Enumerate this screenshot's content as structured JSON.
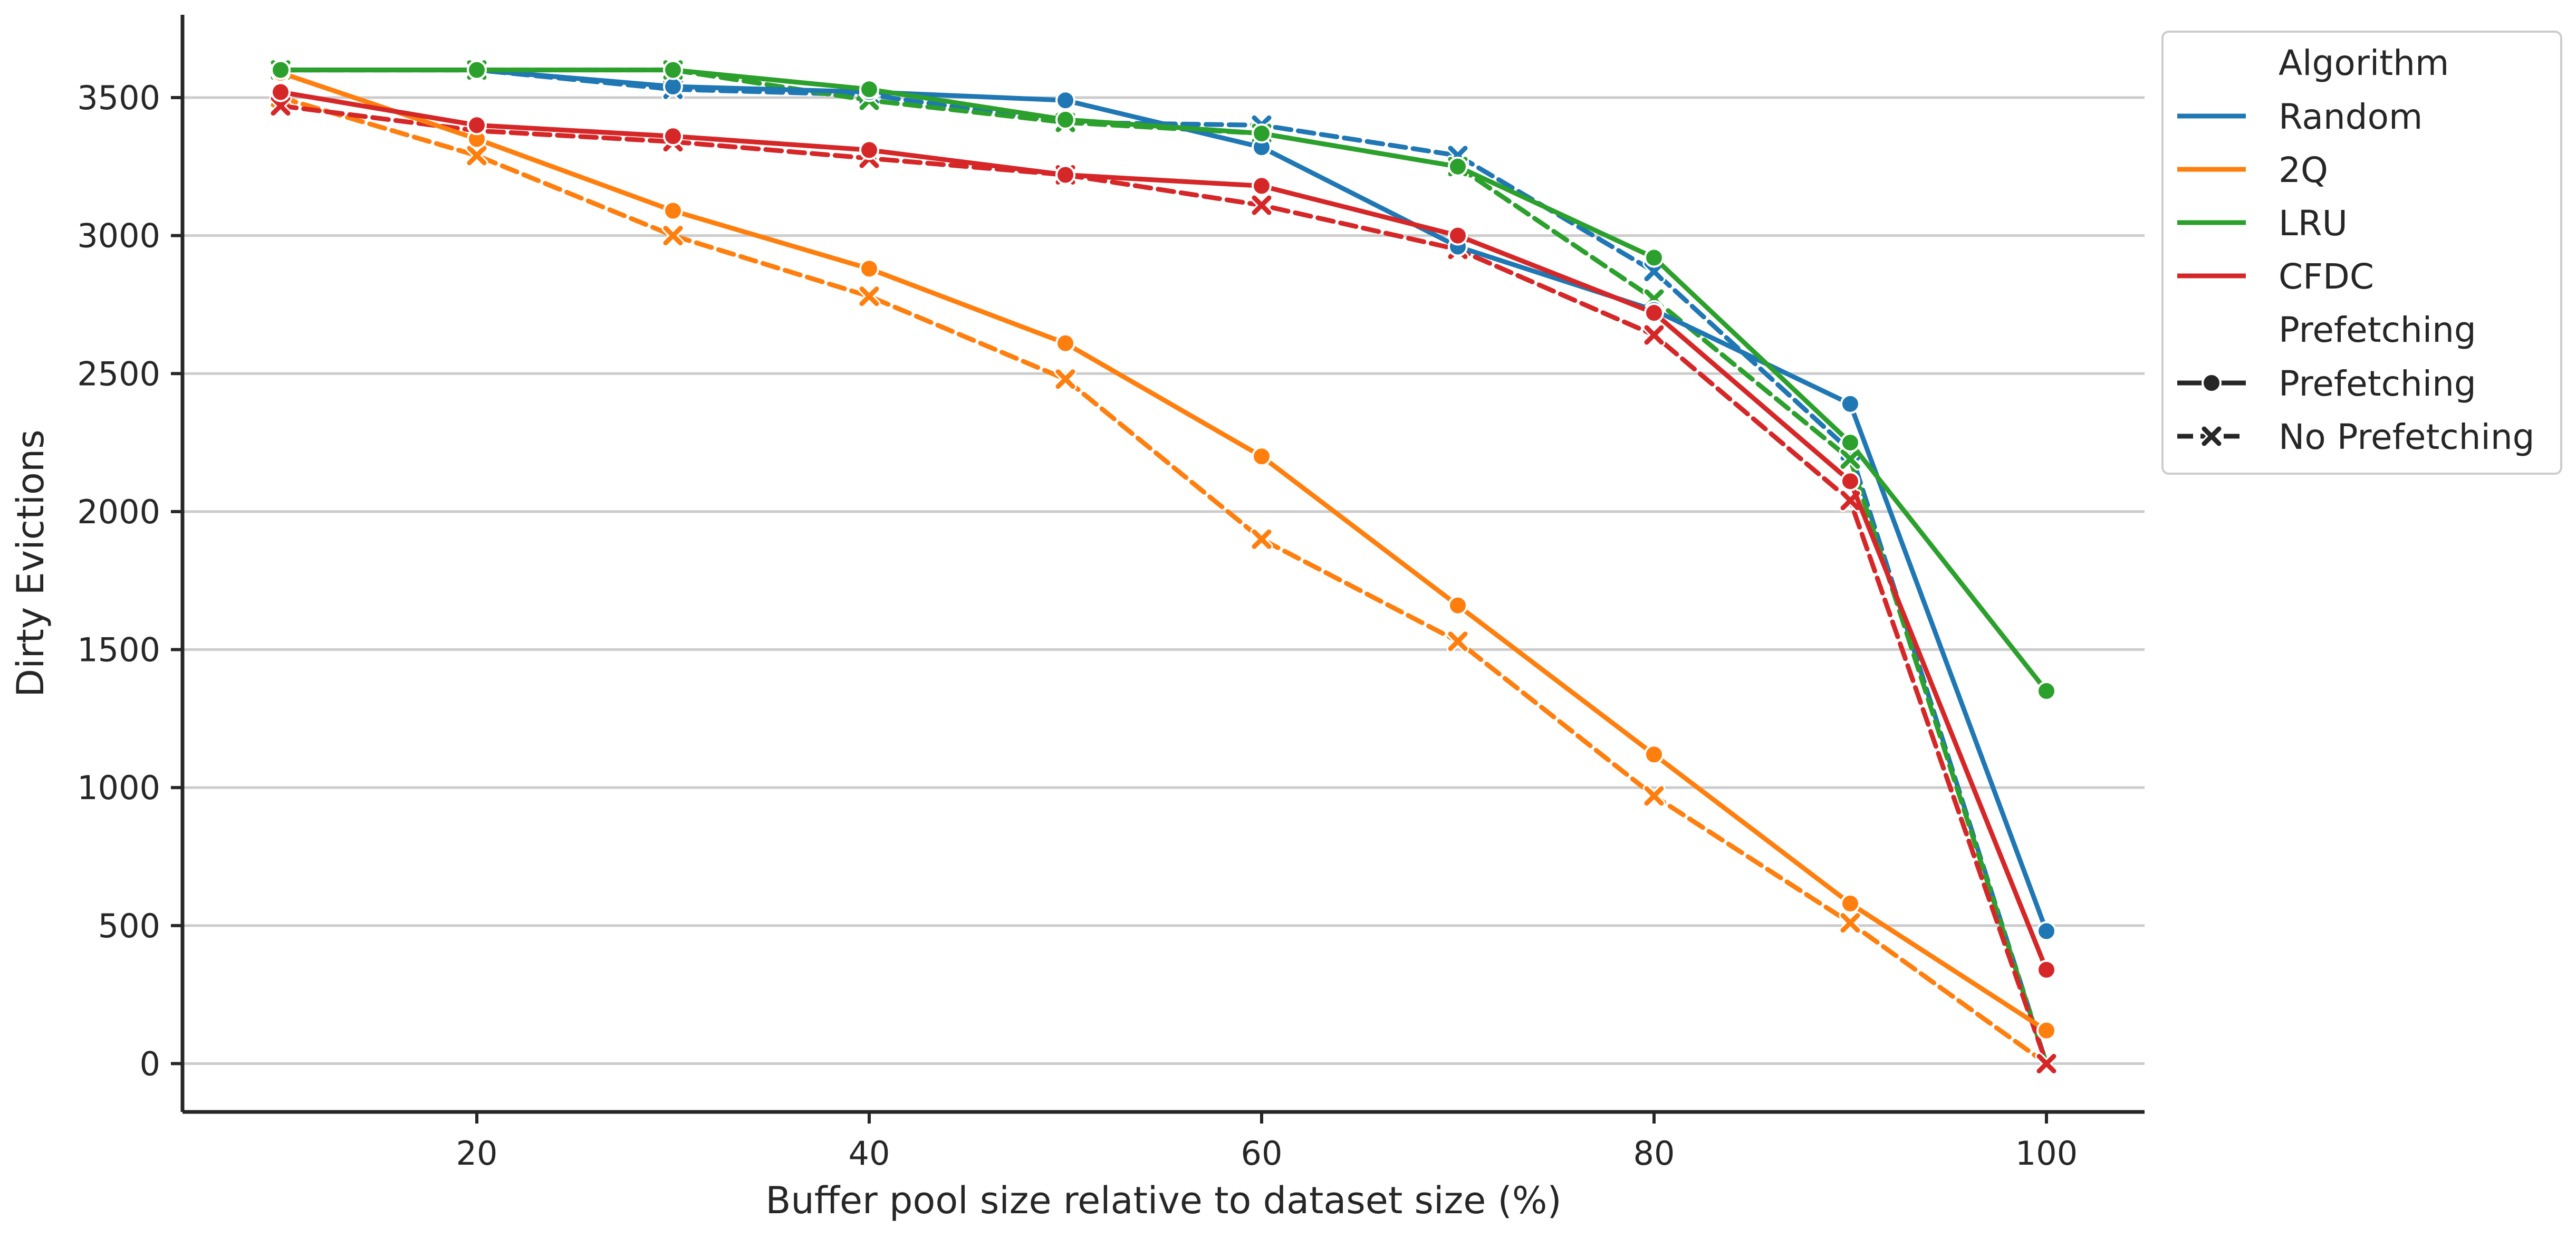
{
  "chart_data": {
    "type": "line",
    "xlabel": "Buffer pool size relative to dataset size (%)",
    "ylabel": "Dirty Evictions",
    "xlim": [
      5,
      105
    ],
    "ylim": [
      -175,
      3800
    ],
    "x_ticks": [
      20,
      40,
      60,
      80,
      100
    ],
    "y_ticks": [
      0,
      500,
      1000,
      1500,
      2000,
      2500,
      3000,
      3500
    ],
    "grid": "horizontal",
    "legend_position": "top-right outside",
    "x": [
      10,
      20,
      30,
      40,
      50,
      60,
      70,
      80,
      90,
      100
    ],
    "legend": {
      "algorithm_title": "Algorithm",
      "prefetching_title": "Prefetching",
      "style_entries": [
        {
          "label": "Prefetching",
          "marker": "circle",
          "dash": "solid"
        },
        {
          "label": "No Prefetching",
          "marker": "x",
          "dash": "dashed"
        }
      ]
    },
    "series": [
      {
        "name": "Random",
        "color": "#1f77b4",
        "prefetching": "Prefetching",
        "values": [
          3600,
          3600,
          3540,
          3520,
          3490,
          3320,
          2960,
          2730,
          2390,
          480
        ]
      },
      {
        "name": "Random",
        "color": "#1f77b4",
        "prefetching": "No Prefetching",
        "values": [
          3600,
          3600,
          3530,
          3510,
          3410,
          3400,
          3290,
          2870,
          2220,
          0
        ]
      },
      {
        "name": "2Q",
        "color": "#ff7f0e",
        "prefetching": "Prefetching",
        "values": [
          3590,
          3350,
          3090,
          2880,
          2610,
          2200,
          1660,
          1120,
          580,
          120
        ]
      },
      {
        "name": "2Q",
        "color": "#ff7f0e",
        "prefetching": "No Prefetching",
        "values": [
          3500,
          3290,
          3000,
          2780,
          2480,
          1900,
          1530,
          970,
          510,
          0
        ]
      },
      {
        "name": "LRU",
        "color": "#2ca02c",
        "prefetching": "Prefetching",
        "values": [
          3600,
          3600,
          3600,
          3530,
          3420,
          3370,
          3250,
          2920,
          2250,
          1350
        ]
      },
      {
        "name": "LRU",
        "color": "#2ca02c",
        "prefetching": "No Prefetching",
        "values": [
          3600,
          3600,
          3600,
          3490,
          3410,
          3370,
          3250,
          2770,
          2190,
          0
        ]
      },
      {
        "name": "CFDC",
        "color": "#d62728",
        "prefetching": "Prefetching",
        "values": [
          3520,
          3400,
          3360,
          3310,
          3220,
          3180,
          3000,
          2720,
          2110,
          340
        ]
      },
      {
        "name": "CFDC",
        "color": "#d62728",
        "prefetching": "No Prefetching",
        "values": [
          3470,
          3380,
          3340,
          3280,
          3220,
          3110,
          2950,
          2640,
          2040,
          0
        ]
      }
    ]
  }
}
